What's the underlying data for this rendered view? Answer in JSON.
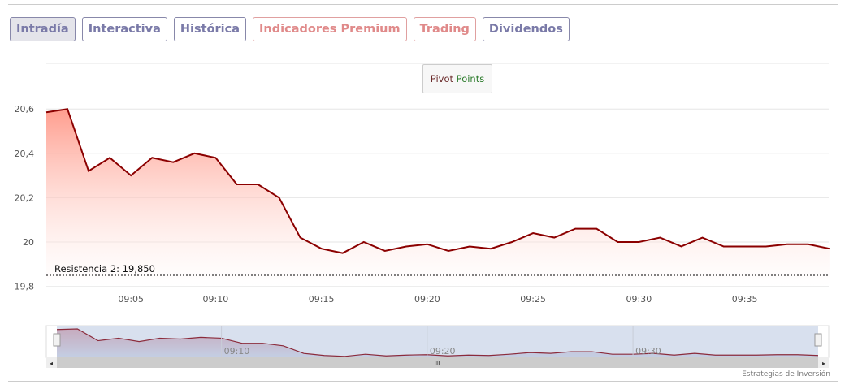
{
  "tabs": [
    {
      "label": "Intradía",
      "active": true,
      "style": "blue"
    },
    {
      "label": "Interactiva",
      "style": "blue"
    },
    {
      "label": "Histórica",
      "style": "blue"
    },
    {
      "label": "Indicadores Premium",
      "style": "red"
    },
    {
      "label": "Trading",
      "style": "red"
    },
    {
      "label": "Dividendos",
      "style": "blue"
    }
  ],
  "pivot_button": {
    "word1": "Pivot",
    "word2": "Points"
  },
  "credit": "Estrategias de Inversión",
  "chart_data": {
    "type": "area",
    "x": [
      "09:01",
      "09:02",
      "09:03",
      "09:04",
      "09:05",
      "09:06",
      "09:07",
      "09:08",
      "09:10",
      "09:11",
      "09:12",
      "09:13",
      "09:14",
      "09:15",
      "09:16",
      "09:17",
      "09:18",
      "09:19",
      "09:20",
      "09:21",
      "09:22",
      "09:23",
      "09:24",
      "09:25",
      "09:26",
      "09:27",
      "09:28",
      "09:29",
      "09:30",
      "09:31",
      "09:32",
      "09:33",
      "09:34",
      "09:35",
      "09:36",
      "09:37",
      "09:38",
      "09:39"
    ],
    "values": [
      20.585,
      20.6,
      20.32,
      20.38,
      20.3,
      20.38,
      20.36,
      20.4,
      20.38,
      20.26,
      20.26,
      20.2,
      20.02,
      19.97,
      19.95,
      20.0,
      19.96,
      19.98,
      19.99,
      19.96,
      19.98,
      19.97,
      20.0,
      20.04,
      20.02,
      20.06,
      20.06,
      20.0,
      20.0,
      20.02,
      19.98,
      20.02,
      19.98,
      19.98,
      19.98,
      19.99,
      19.99,
      19.97
    ],
    "ylim": [
      19.8,
      20.7
    ],
    "yticks": [
      {
        "v": 19.8,
        "label": "19,8"
      },
      {
        "v": 20,
        "label": "20"
      },
      {
        "v": 20.2,
        "label": "20,2"
      },
      {
        "v": 20.4,
        "label": "20,4"
      },
      {
        "v": 20.6,
        "label": "20,6"
      }
    ],
    "xticks": [
      "09:05",
      "09:10",
      "09:15",
      "09:20",
      "09:25",
      "09:30",
      "09:35"
    ],
    "navigator_ticks": [
      "09:10",
      "09:20",
      "09:30"
    ],
    "line_color": "#8b0000",
    "resistance": {
      "label": "Resistencia 2: 19,850",
      "value": 19.85
    },
    "grid": true
  }
}
